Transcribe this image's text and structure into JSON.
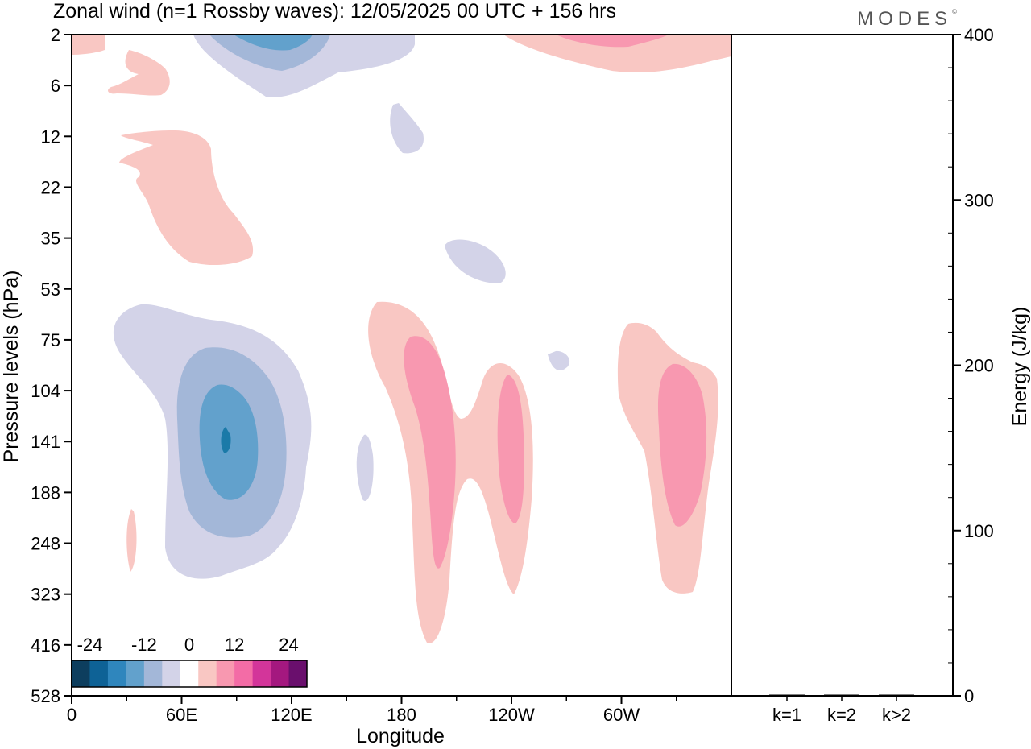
{
  "header": {
    "title": "Zonal wind (n=1 Rossby waves):  12/05/2025  00 UTC  + 156 hrs",
    "brand": "MODES",
    "brand_mark": "©"
  },
  "colors": {
    "neg1": "#d3d3e8",
    "neg2": "#a3b7d8",
    "neg3": "#62a1cc",
    "neg4": "#1b7aa8",
    "pos1": "#f9c7c3",
    "pos2": "#f898b0",
    "pos3": "#f36ca6",
    "pos4": "#d3359a"
  },
  "chart_data": [
    {
      "type": "heatmap",
      "description_key": "zonal-wind-contour",
      "xlabel": "Longitude",
      "ylabel": "Pressure levels (hPa)",
      "x_ticks": [
        "0",
        "60E",
        "120E",
        "180",
        "120W",
        "60W"
      ],
      "x_tick_values": [
        0,
        60,
        120,
        180,
        240,
        300
      ],
      "xlim": [
        0,
        360
      ],
      "y_ticks": [
        "2",
        "6",
        "12",
        "22",
        "35",
        "53",
        "75",
        "104",
        "141",
        "188",
        "248",
        "323",
        "416",
        "528"
      ],
      "colorbar": {
        "labels": [
          "-24",
          "-12",
          "0",
          "12",
          "24"
        ],
        "levels": [
          -24,
          -20,
          -16,
          -12,
          -8,
          -4,
          4,
          8,
          12,
          16,
          20,
          24
        ],
        "colors": [
          "#0d3e5e",
          "#0e6296",
          "#2f86bd",
          "#62a1cc",
          "#a3b7d8",
          "#d3d3e8",
          "#ffffff",
          "#f9c7c3",
          "#f898b0",
          "#f36ca6",
          "#d3359a",
          "#a4187f",
          "#6a0f6d"
        ]
      }
    },
    {
      "type": "bar",
      "ylabel": "Energy (J/kg)",
      "categories": [
        "k=1",
        "k=2",
        "k>2"
      ],
      "values": [
        0.5,
        0.3,
        0.4
      ],
      "ylim": [
        0,
        400
      ],
      "y_ticks": [
        "0",
        "100",
        "200",
        "300",
        "400"
      ],
      "y_tick_values": [
        0,
        100,
        200,
        300,
        400
      ]
    }
  ]
}
